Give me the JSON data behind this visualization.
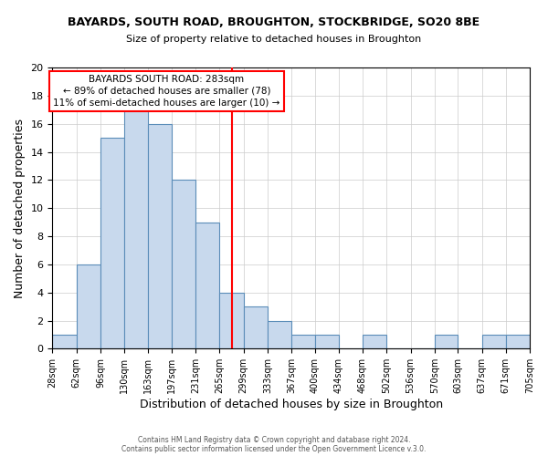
{
  "title_line1": "BAYARDS, SOUTH ROAD, BROUGHTON, STOCKBRIDGE, SO20 8BE",
  "title_line2": "Size of property relative to detached houses in Broughton",
  "xlabel": "Distribution of detached houses by size in Broughton",
  "ylabel": "Number of detached properties",
  "bin_edges": [
    28,
    62,
    96,
    130,
    163,
    197,
    231,
    265,
    299,
    333,
    367,
    400,
    434,
    468,
    502,
    536,
    570,
    603,
    637,
    671,
    705
  ],
  "bar_heights": [
    1,
    6,
    15,
    17,
    16,
    12,
    9,
    4,
    3,
    2,
    1,
    1,
    0,
    1,
    0,
    0,
    1,
    0,
    1,
    1
  ],
  "bar_color": "#c8d9ed",
  "bar_edge_color": "#5b8db8",
  "vline_x": 283,
  "vline_color": "red",
  "ylim": [
    0,
    20
  ],
  "yticks": [
    0,
    2,
    4,
    6,
    8,
    10,
    12,
    14,
    16,
    18,
    20
  ],
  "grid_color": "#cccccc",
  "annotation_title": "BAYARDS SOUTH ROAD: 283sqm",
  "annotation_line1": "← 89% of detached houses are smaller (78)",
  "annotation_line2": "11% of semi-detached houses are larger (10) →",
  "annotation_box_color": "#ffffff",
  "annotation_box_edge": "red",
  "footer_line1": "Contains HM Land Registry data © Crown copyright and database right 2024.",
  "footer_line2": "Contains public sector information licensed under the Open Government Licence v.3.0.",
  "xtick_labels": [
    "28sqm",
    "62sqm",
    "96sqm",
    "130sqm",
    "163sqm",
    "197sqm",
    "231sqm",
    "265sqm",
    "299sqm",
    "333sqm",
    "367sqm",
    "400sqm",
    "434sqm",
    "468sqm",
    "502sqm",
    "536sqm",
    "570sqm",
    "603sqm",
    "637sqm",
    "671sqm",
    "705sqm"
  ],
  "background_color": "#ffffff"
}
